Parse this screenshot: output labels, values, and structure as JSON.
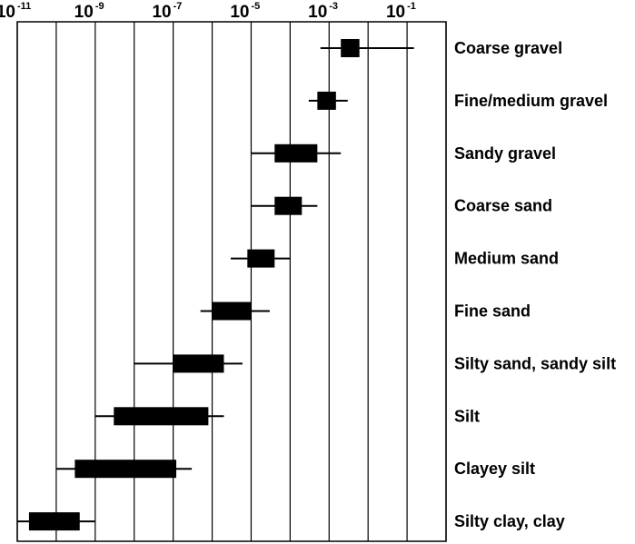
{
  "chart_data": {
    "type": "range-bar",
    "x_scale": "log10",
    "x_range": [
      1e-11,
      1
    ],
    "x_tick_exponents": [
      -11,
      -10,
      -9,
      -8,
      -7,
      -6,
      -5,
      -4,
      -3,
      -2,
      -1,
      0
    ],
    "x_tick_labels": [
      {
        "exponent": -11,
        "base": "10",
        "exp": "-11"
      },
      {
        "exponent": -9,
        "base": "10",
        "exp": "-9"
      },
      {
        "exponent": -7,
        "base": "10",
        "exp": "-7"
      },
      {
        "exponent": -5,
        "base": "10",
        "exp": "-5"
      },
      {
        "exponent": -3,
        "base": "10",
        "exp": "-3"
      },
      {
        "exponent": -1,
        "base": "10",
        "exp": "-1"
      }
    ],
    "grid": true,
    "categories": [
      {
        "label": "Coarse gravel",
        "range": [
          0.0006,
          0.15
        ],
        "typical": [
          0.002,
          0.006
        ]
      },
      {
        "label": "Fine/medium gravel",
        "range": [
          0.0003,
          0.003
        ],
        "typical": [
          0.0005,
          0.0015
        ]
      },
      {
        "label": "Sandy gravel",
        "range": [
          1e-05,
          0.002
        ],
        "typical": [
          4e-05,
          0.0005
        ]
      },
      {
        "label": "Coarse sand",
        "range": [
          1e-05,
          0.0005
        ],
        "typical": [
          4e-05,
          0.0002
        ]
      },
      {
        "label": "Medium sand",
        "range": [
          3e-06,
          0.0001
        ],
        "typical": [
          8e-06,
          4e-05
        ]
      },
      {
        "label": "Fine sand",
        "range": [
          5e-07,
          3e-05
        ],
        "typical": [
          1e-06,
          1e-05
        ]
      },
      {
        "label": "Silty sand, sandy silt",
        "range": [
          1e-08,
          6e-06
        ],
        "typical": [
          1e-07,
          2e-06
        ]
      },
      {
        "label": "Silt",
        "range": [
          1e-09,
          2e-06
        ],
        "typical": [
          3e-09,
          8e-07
        ]
      },
      {
        "label": "Clayey silt",
        "range": [
          1e-10,
          3e-07
        ],
        "typical": [
          3e-10,
          1.2e-07
        ]
      },
      {
        "label": "Silty clay, clay",
        "range": [
          1e-11,
          1e-09
        ],
        "typical": [
          2e-11,
          4e-10
        ]
      }
    ]
  }
}
